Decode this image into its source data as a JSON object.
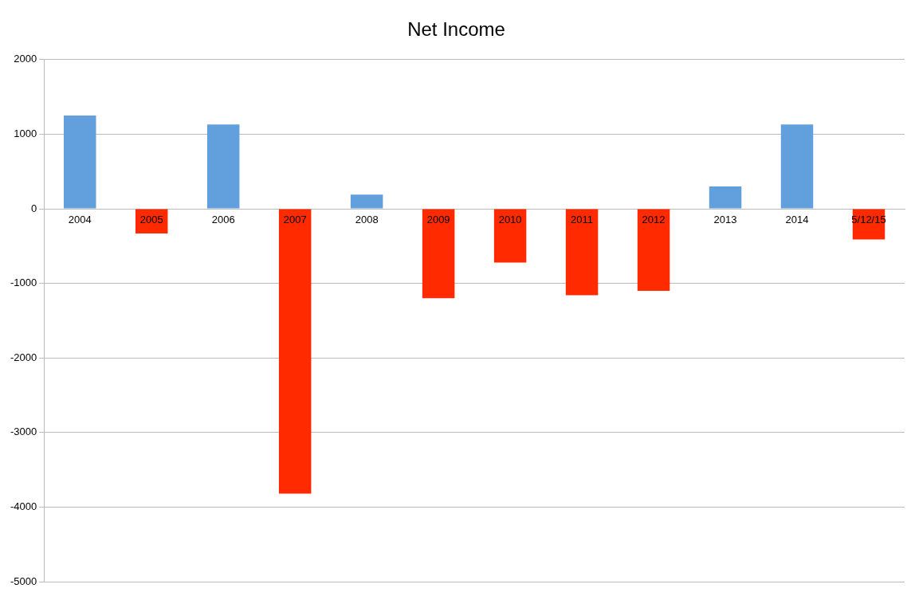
{
  "chart_data": {
    "type": "bar",
    "title": "Net Income",
    "categories": [
      "2004",
      "2005",
      "2006",
      "2007",
      "2008",
      "2009",
      "2010",
      "2011",
      "2012",
      "2013",
      "2014",
      "5/12/15"
    ],
    "values": [
      1250,
      -330,
      1130,
      -3820,
      190,
      -1200,
      -720,
      -1160,
      -1100,
      300,
      1130,
      -410
    ],
    "colors": [
      "#629fdd",
      "#ff2a00",
      "#629fdd",
      "#ff2a00",
      "#629fdd",
      "#ff2a00",
      "#ff2a00",
      "#ff2a00",
      "#ff2a00",
      "#629fdd",
      "#629fdd",
      "#ff2a00"
    ],
    "ylim": [
      -5000,
      2000
    ],
    "yticks": [
      -5000,
      -4000,
      -3000,
      -2000,
      -1000,
      0,
      1000,
      2000
    ],
    "grid": "y",
    "legend": false
  }
}
